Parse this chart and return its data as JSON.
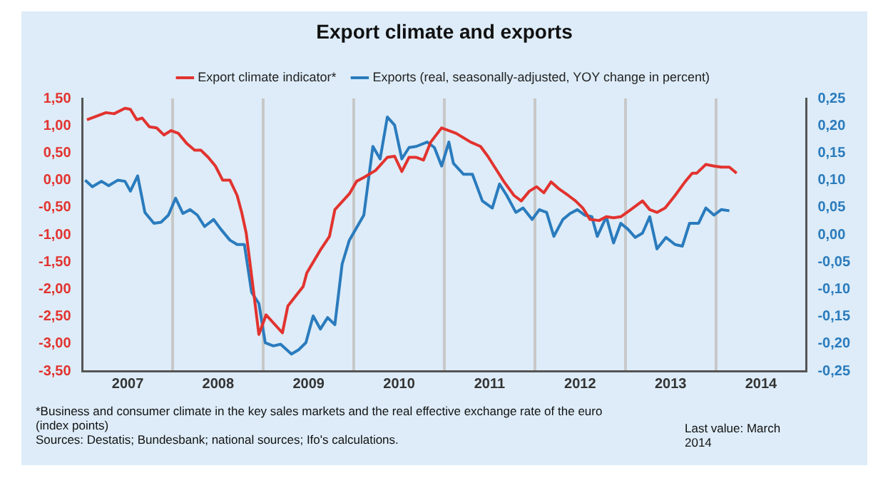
{
  "chart_data": {
    "type": "line",
    "title": "Export climate and exports",
    "xlim": [
      2007,
      2015
    ],
    "xticks": [
      {
        "value": 2007.5,
        "label": "2007"
      },
      {
        "value": 2008,
        "label": null
      },
      {
        "value": 2008.5,
        "label": "2008"
      },
      {
        "value": 2009,
        "label": null
      },
      {
        "value": 2009.5,
        "label": "2009"
      },
      {
        "value": 2010,
        "label": null
      },
      {
        "value": 2010.5,
        "label": "2010"
      },
      {
        "value": 2011,
        "label": null
      },
      {
        "value": 2011.5,
        "label": "2011"
      },
      {
        "value": 2012,
        "label": null
      },
      {
        "value": 2012.5,
        "label": "2012"
      },
      {
        "value": 2013,
        "label": null
      },
      {
        "value": 2013.5,
        "label": "2013"
      },
      {
        "value": 2014,
        "label": null
      },
      {
        "value": 2014.5,
        "label": "2014"
      }
    ],
    "ylim": [
      -3.5,
      1.5
    ],
    "yticks": [
      {
        "value": -3.5,
        "label": "-3,50"
      },
      {
        "value": -3,
        "label": "-3,00"
      },
      {
        "value": -2.5,
        "label": "-2,50"
      },
      {
        "value": -2,
        "label": "-2,00"
      },
      {
        "value": -1.5,
        "label": "-1,50"
      },
      {
        "value": -1,
        "label": "-1,00"
      },
      {
        "value": -0.5,
        "label": "-0,50"
      },
      {
        "value": 0,
        "label": "0,00"
      },
      {
        "value": 0.5,
        "label": "0,50"
      },
      {
        "value": 1,
        "label": "1,00"
      },
      {
        "value": 1.5,
        "label": "1,50"
      }
    ],
    "y2lim": [
      -0.25,
      0.25
    ],
    "y2ticks": [
      {
        "value": -0.25,
        "label": "-0,25"
      },
      {
        "value": -0.2,
        "label": "-0,20"
      },
      {
        "value": -0.15,
        "label": "-0,15"
      },
      {
        "value": -0.1,
        "label": "-0,10"
      },
      {
        "value": -0.05,
        "label": "-0,05"
      },
      {
        "value": 0,
        "label": "0,00"
      },
      {
        "value": 0.05,
        "label": "0,05"
      },
      {
        "value": 0.1,
        "label": "0,10"
      },
      {
        "value": 0.15,
        "label": "0,15"
      },
      {
        "value": 0.2,
        "label": "0,20"
      },
      {
        "value": 0.25,
        "label": "0,25"
      }
    ],
    "grid": "x",
    "legend": "top",
    "annotations": [
      "*Business and consumer climate in the key sales markets and the real effective exchange rate of the euro (index points)",
      "Sources: Destatis; Bundesbank; national sources; Ifo's calculations.",
      "Last value: March 2014"
    ],
    "series": [
      {
        "name": "Export climate indicator*",
        "color": "#e2332f",
        "x": [
          2007.05,
          2007.26,
          2007.35,
          2007.47,
          2007.53,
          2007.6,
          2007.66,
          2007.74,
          2007.82,
          2007.9,
          2007.98,
          2008.06,
          2008.15,
          2008.24,
          2008.31,
          2008.39,
          2008.47,
          2008.55,
          2008.63,
          2008.71,
          2008.76,
          2008.81,
          2008.85,
          2008.95,
          2009.03,
          2009.21,
          2009.27,
          2009.44,
          2009.48,
          2009.63,
          2009.73,
          2009.79,
          2009.95,
          2010.03,
          2010.11,
          2010.24,
          2010.37,
          2010.45,
          2010.53,
          2010.61,
          2010.69,
          2010.77,
          2010.85,
          2010.97,
          2011.05,
          2011.13,
          2011.21,
          2011.29,
          2011.4,
          2011.48,
          2011.56,
          2011.66,
          2011.77,
          2011.85,
          2011.94,
          2012.02,
          2012.1,
          2012.18,
          2012.26,
          2012.37,
          2012.45,
          2012.53,
          2012.61,
          2012.71,
          2012.79,
          2012.87,
          2012.95,
          2013.06,
          2013.19,
          2013.27,
          2013.35,
          2013.44,
          2013.55,
          2013.66,
          2013.74,
          2013.79,
          2013.89,
          2013.98,
          2014.06,
          2014.15,
          2014.23
        ],
        "values": [
          1.11,
          1.24,
          1.22,
          1.32,
          1.3,
          1.11,
          1.14,
          0.98,
          0.96,
          0.83,
          0.91,
          0.86,
          0.68,
          0.55,
          0.55,
          0.42,
          0.26,
          0.0,
          0.0,
          -0.28,
          -0.59,
          -0.97,
          -1.49,
          -2.83,
          -2.47,
          -2.8,
          -2.31,
          -1.95,
          -1.7,
          -1.28,
          -1.03,
          -0.54,
          -0.25,
          -0.02,
          0.05,
          0.18,
          0.42,
          0.44,
          0.16,
          0.42,
          0.42,
          0.37,
          0.7,
          0.96,
          0.91,
          0.86,
          0.78,
          0.7,
          0.62,
          0.44,
          0.23,
          -0.03,
          -0.28,
          -0.38,
          -0.2,
          -0.12,
          -0.23,
          -0.03,
          -0.15,
          -0.28,
          -0.38,
          -0.51,
          -0.72,
          -0.74,
          -0.67,
          -0.69,
          -0.67,
          -0.54,
          -0.38,
          -0.54,
          -0.59,
          -0.51,
          -0.28,
          -0.03,
          0.13,
          0.13,
          0.29,
          0.26,
          0.24,
          0.24,
          0.13
        ]
      },
      {
        "name": "Exports (real, seasonally-adjusted, YOY change in percent)",
        "color": "#2a7bbd",
        "axis": "y2",
        "x": [
          2007.03,
          2007.11,
          2007.21,
          2007.29,
          2007.39,
          2007.47,
          2007.53,
          2007.61,
          2007.69,
          2007.79,
          2007.87,
          2007.95,
          2008.03,
          2008.11,
          2008.19,
          2008.27,
          2008.35,
          2008.45,
          2008.53,
          2008.63,
          2008.71,
          2008.79,
          2008.87,
          2008.95,
          2009.02,
          2009.11,
          2009.19,
          2009.31,
          2009.39,
          2009.47,
          2009.55,
          2009.63,
          2009.71,
          2009.79,
          2009.87,
          2009.95,
          2010.11,
          2010.21,
          2010.29,
          2010.37,
          2010.45,
          2010.53,
          2010.61,
          2010.69,
          2010.81,
          2010.89,
          2010.97,
          2011.05,
          2011.1,
          2011.21,
          2011.31,
          2011.42,
          2011.53,
          2011.61,
          2011.69,
          2011.79,
          2011.87,
          2011.97,
          2012.05,
          2012.13,
          2012.21,
          2012.31,
          2012.39,
          2012.47,
          2012.55,
          2012.63,
          2012.69,
          2012.79,
          2012.87,
          2012.95,
          2013.03,
          2013.11,
          2013.19,
          2013.27,
          2013.35,
          2013.45,
          2013.55,
          2013.63,
          2013.71,
          2013.81,
          2013.89,
          2013.98,
          2014.06,
          2014.15
        ],
        "values": [
          0.1,
          0.088,
          0.098,
          0.09,
          0.1,
          0.098,
          0.08,
          0.108,
          0.041,
          0.021,
          0.023,
          0.036,
          0.067,
          0.039,
          0.046,
          0.036,
          0.015,
          0.028,
          0.01,
          -0.01,
          -0.018,
          -0.018,
          -0.106,
          -0.126,
          -0.198,
          -0.204,
          -0.201,
          -0.219,
          -0.211,
          -0.198,
          -0.149,
          -0.173,
          -0.152,
          -0.165,
          -0.054,
          -0.01,
          0.036,
          0.162,
          0.139,
          0.216,
          0.201,
          0.139,
          0.16,
          0.162,
          0.17,
          0.16,
          0.126,
          0.17,
          0.131,
          0.111,
          0.111,
          0.062,
          0.049,
          0.093,
          0.072,
          0.041,
          0.049,
          0.028,
          0.046,
          0.041,
          -0.003,
          0.028,
          0.039,
          0.046,
          0.036,
          0.033,
          -0.003,
          0.033,
          -0.015,
          0.021,
          0.01,
          -0.005,
          0.003,
          0.033,
          -0.026,
          -0.005,
          -0.018,
          -0.021,
          0.021,
          0.021,
          0.049,
          0.036,
          0.046,
          0.044
        ]
      }
    ]
  }
}
